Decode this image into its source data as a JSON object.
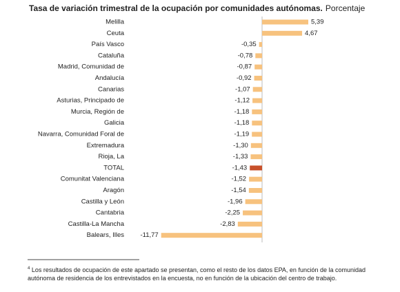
{
  "chart_data": {
    "type": "hbar",
    "title": "Tasa de variación trimestral de la ocupación por comunidades autónomas.",
    "subtitle": "Porcentaje",
    "categories": [
      "Melilla",
      "Ceuta",
      "País Vasco",
      "Cataluña",
      "Madrid, Comunidad de",
      "Andalucía",
      "Canarias",
      "Asturias, Principado de",
      "Murcia, Región de",
      "Galicia",
      "Navarra, Comunidad Foral de",
      "Extremadura",
      "Rioja, La",
      "TOTAL",
      "Comunitat Valenciana",
      "Aragón",
      "Castilla y León",
      "Cantabria",
      "Castilla-La Mancha",
      "Balears, Illes"
    ],
    "values": [
      5.39,
      4.67,
      -0.35,
      -0.78,
      -0.87,
      -0.92,
      -1.07,
      -1.12,
      -1.18,
      -1.18,
      -1.19,
      -1.3,
      -1.33,
      -1.43,
      -1.52,
      -1.54,
      -1.96,
      -2.25,
      -2.83,
      -11.77
    ],
    "value_labels": [
      "5,39",
      "4,67",
      "-0,35",
      "-0,78",
      "-0,87",
      "-0,92",
      "-1,07",
      "-1,12",
      "-1,18",
      "-1,18",
      "-1,19",
      "-1,30",
      "-1,33",
      "-1,43",
      "-1,52",
      "-1,54",
      "-1,96",
      "-2,25",
      "-2,83",
      "-11,77"
    ],
    "colors": [
      "#f7c27e",
      "#f7c27e",
      "#f7c27e",
      "#f7c27e",
      "#f7c27e",
      "#f7c27e",
      "#f7c27e",
      "#f7c27e",
      "#f7c27e",
      "#f7c27e",
      "#f7c27e",
      "#f7c27e",
      "#f7c27e",
      "#c8502a",
      "#f7c27e",
      "#f7c27e",
      "#f7c27e",
      "#f7c27e",
      "#f7c27e",
      "#f7c27e"
    ]
  },
  "footnote_marker": "4",
  "footnote": "Los resultados de ocupación de este apartado se presentan, como el resto de los datos EPA, en función de la comunidad autónoma de residencia de los entrevistados en la encuesta, no en función de la ubicación del centro de trabajo."
}
